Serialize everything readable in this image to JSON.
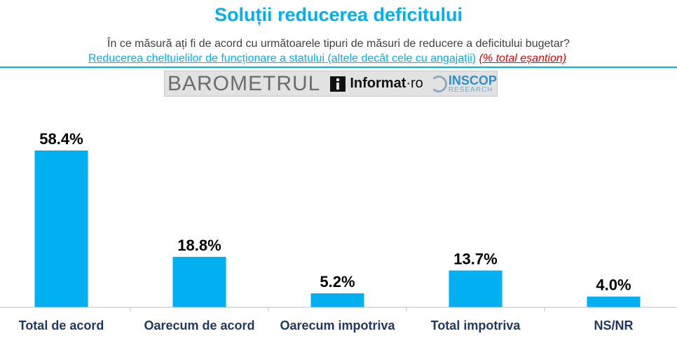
{
  "header": {
    "title": "Soluții reducerea deficitului",
    "question": "În ce măsură ați fi de acord cu următoarele tipuri de măsuri de reducere a deficitului bugetar?",
    "topic": "Reducerea cheltuielilor de funcționare a statului (altele decât cele cu angajații)",
    "note": "(% total eșantion)"
  },
  "logo": {
    "part1": "BAROMETRUL",
    "part2": "Informat",
    "part2_suffix": "·ro",
    "part3": "INSCOP",
    "part3_sub": "RESEARCH"
  },
  "colors": {
    "bar": "#00b0f0",
    "title": "#00b0f0",
    "category_text": "#1f3864"
  },
  "chart_data": {
    "type": "bar",
    "categories": [
      "Total de acord",
      "Oarecum de acord",
      "Oarecum impotriva",
      "Total impotriva",
      "NS/NR"
    ],
    "values": [
      58.4,
      18.8,
      5.2,
      13.7,
      4.0
    ],
    "data_labels": [
      "58.4%",
      "18.8%",
      "5.2%",
      "13.7%",
      "4.0%"
    ],
    "unit": "%",
    "ylim": [
      0,
      60
    ],
    "grid": false,
    "legend": "none"
  }
}
